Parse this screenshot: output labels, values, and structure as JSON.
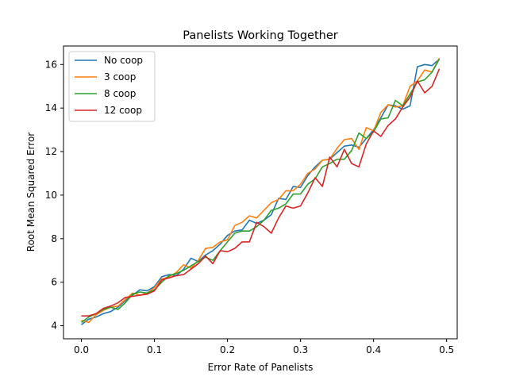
{
  "chart_data": {
    "type": "line",
    "title": "Panelists Working Together",
    "xlabel": "Error Rate of Panelists",
    "ylabel": "Root Mean Squared Error",
    "xlim": [
      -0.0245,
      0.5145
    ],
    "ylim": [
      3.4,
      16.85
    ],
    "xticks": [
      0.0,
      0.1,
      0.2,
      0.3,
      0.4,
      0.5
    ],
    "xtick_labels": [
      "0.0",
      "0.1",
      "0.2",
      "0.3",
      "0.4",
      "0.5"
    ],
    "yticks": [
      4,
      6,
      8,
      10,
      12,
      14,
      16
    ],
    "ytick_labels": [
      "4",
      "6",
      "8",
      "10",
      "12",
      "14",
      "16"
    ],
    "grid": false,
    "legend_position": "top-left",
    "x": [
      0.0,
      0.01,
      0.02,
      0.03,
      0.04,
      0.05,
      0.06,
      0.07,
      0.08,
      0.09,
      0.1,
      0.11,
      0.12,
      0.13,
      0.14,
      0.15,
      0.16,
      0.17,
      0.18,
      0.19,
      0.2,
      0.21,
      0.22,
      0.23,
      0.24,
      0.25,
      0.26,
      0.27,
      0.28,
      0.29,
      0.3,
      0.31,
      0.32,
      0.33,
      0.34,
      0.35,
      0.36,
      0.37,
      0.38,
      0.39,
      0.4,
      0.41,
      0.42,
      0.43,
      0.44,
      0.45,
      0.46,
      0.47,
      0.48,
      0.49
    ],
    "series": [
      {
        "name": "No coop",
        "color": "#1f77b4",
        "values": [
          4.05,
          4.3,
          4.4,
          4.55,
          4.65,
          4.85,
          5.15,
          5.4,
          5.65,
          5.6,
          5.8,
          6.25,
          6.35,
          6.3,
          6.6,
          7.1,
          6.95,
          7.25,
          7.45,
          7.75,
          8.15,
          8.35,
          8.4,
          8.85,
          8.7,
          8.85,
          9.1,
          9.85,
          9.8,
          10.4,
          10.35,
          10.9,
          11.3,
          11.6,
          11.65,
          11.95,
          12.25,
          12.3,
          12.2,
          12.6,
          13.0,
          13.55,
          14.15,
          14.1,
          13.95,
          14.1,
          15.9,
          16.0,
          15.95,
          16.25
        ]
      },
      {
        "name": "3 coop",
        "color": "#ff7f0e",
        "values": [
          4.25,
          4.15,
          4.5,
          4.7,
          4.85,
          4.9,
          5.2,
          5.5,
          5.4,
          5.5,
          5.75,
          6.15,
          6.25,
          6.45,
          6.8,
          6.65,
          7.0,
          7.55,
          7.6,
          7.85,
          7.95,
          8.6,
          8.75,
          9.05,
          8.95,
          9.3,
          9.65,
          9.8,
          10.2,
          10.2,
          10.5,
          11.0,
          11.2,
          11.6,
          11.65,
          12.15,
          12.55,
          12.6,
          12.1,
          13.1,
          12.95,
          13.8,
          14.15,
          14.05,
          14.1,
          15.0,
          15.25,
          15.75,
          15.65,
          16.3
        ]
      },
      {
        "name": "8 coop",
        "color": "#2ca02c",
        "values": [
          4.15,
          4.4,
          4.55,
          4.75,
          4.85,
          4.75,
          5.05,
          5.45,
          5.55,
          5.5,
          5.65,
          6.0,
          6.3,
          6.4,
          6.55,
          6.75,
          6.95,
          7.15,
          7.0,
          7.45,
          7.85,
          8.25,
          8.35,
          8.35,
          8.55,
          8.85,
          9.3,
          9.4,
          9.6,
          10.05,
          10.05,
          10.5,
          10.75,
          11.3,
          11.45,
          11.65,
          11.65,
          12.05,
          12.85,
          12.6,
          12.9,
          13.5,
          13.55,
          14.35,
          14.1,
          14.65,
          15.2,
          15.3,
          15.65,
          16.25
        ]
      },
      {
        "name": "12 coop",
        "color": "#d62728",
        "values": [
          4.45,
          4.45,
          4.55,
          4.8,
          4.9,
          5.05,
          5.3,
          5.35,
          5.4,
          5.45,
          5.6,
          6.1,
          6.2,
          6.3,
          6.35,
          6.6,
          6.85,
          7.2,
          6.85,
          7.45,
          7.4,
          7.55,
          7.85,
          7.85,
          8.75,
          8.55,
          8.25,
          8.95,
          9.5,
          9.4,
          9.5,
          10.1,
          10.8,
          10.4,
          11.75,
          11.3,
          12.1,
          11.45,
          11.3,
          12.35,
          12.95,
          12.7,
          13.2,
          13.5,
          14.05,
          14.5,
          15.25,
          14.7,
          15.0,
          15.8
        ]
      }
    ]
  }
}
